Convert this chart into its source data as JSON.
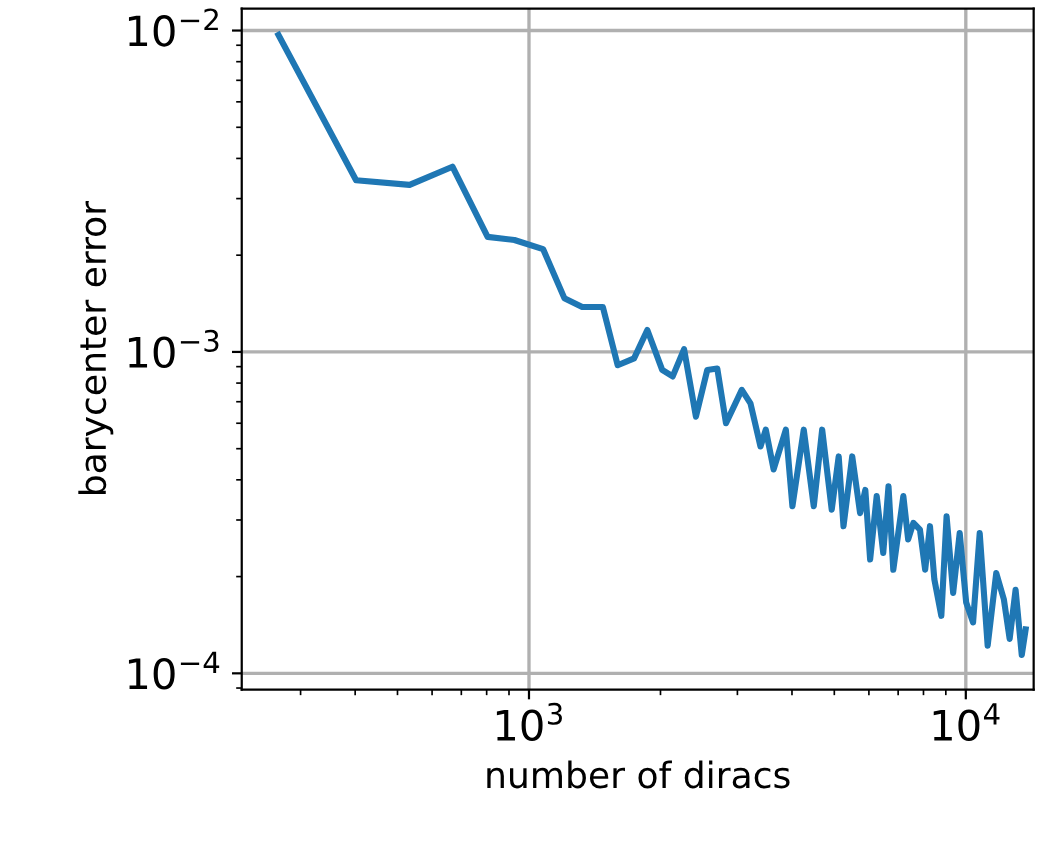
{
  "chart_data": {
    "type": "line",
    "xlabel": "number of diracs",
    "ylabel": "barycenter error",
    "log": "xy",
    "grid": true,
    "marker": "none",
    "line_style": "solid",
    "xlim": [
      220,
      14300
    ],
    "ylim": [
      8.9e-05,
      0.0117
    ],
    "xticks": [
      {
        "value": 1000,
        "label": "10$^{3}$"
      },
      {
        "value": 10000,
        "label": "10$^{4}$"
      }
    ],
    "yticks": [
      {
        "value": 0.0001,
        "label": "10$^{−4}$"
      },
      {
        "value": 0.001,
        "label": "10$^{−3}$"
      },
      {
        "value": 0.01,
        "label": "10$^{−2}$"
      }
    ],
    "series": [
      {
        "color": "#1f77b4",
        "x": [
          267,
          402,
          533,
          668,
          804,
          926,
          1077,
          1205,
          1324,
          1476,
          1596,
          1740,
          1866,
          2018,
          2133,
          2265,
          2411,
          2559,
          2698,
          2825,
          3070,
          3214,
          3388,
          3484,
          3631,
          3873,
          4009,
          4256,
          4487,
          4690,
          4932,
          5117,
          5248,
          5495,
          5728,
          5888,
          6039,
          6252,
          6471,
          6653,
          6823,
          7194,
          7379,
          7586,
          7852,
          8072,
          8279,
          8472,
          8790,
          9036,
          9354,
          9683,
          10020,
          10390,
          10760,
          11220,
          11740,
          12220,
          12600,
          13000,
          13430,
          13710
        ],
        "values": [
          0.00969,
          0.00342,
          0.00331,
          0.00377,
          0.00228,
          0.00223,
          0.00209,
          0.00147,
          0.00138,
          0.00138,
          0.000909,
          0.000955,
          0.00117,
          0.000879,
          0.000839,
          0.00102,
          0.000629,
          0.000879,
          0.000888,
          0.0006,
          0.000762,
          0.000692,
          0.000508,
          0.000573,
          0.000431,
          0.000573,
          0.000331,
          0.000573,
          0.000331,
          0.000573,
          0.000323,
          0.000473,
          0.000287,
          0.000473,
          0.000315,
          0.000372,
          0.000226,
          0.000356,
          0.000237,
          0.000382,
          0.00021,
          0.000356,
          0.000261,
          0.000294,
          0.00028,
          0.00021,
          0.000287,
          0.000196,
          0.000151,
          0.000308,
          0.000178,
          0.000273,
          0.000166,
          0.000144,
          0.000273,
          0.000122,
          0.000205,
          0.00017,
          0.000128,
          0.000182,
          0.000114,
          0.000137
        ]
      }
    ]
  }
}
